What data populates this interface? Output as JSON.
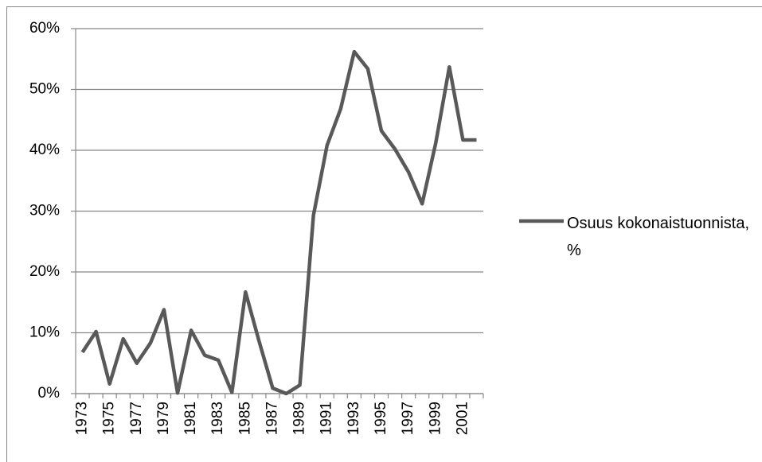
{
  "chart_data": {
    "type": "line",
    "categories": [
      "1973",
      null,
      "1975",
      null,
      "1977",
      null,
      "1979",
      null,
      "1981",
      null,
      "1983",
      null,
      "1985",
      null,
      "1987",
      null,
      "1989",
      null,
      "1991",
      null,
      "1993",
      null,
      "1995",
      null,
      "1997",
      null,
      "1999",
      null,
      "2001",
      null
    ],
    "series": [
      {
        "name": "Osuus kokonaistuonnista, %",
        "color": "#595959",
        "values": [
          6.8,
          10.2,
          1.6,
          9.0,
          5.0,
          8.3,
          13.8,
          0.1,
          10.4,
          6.3,
          5.5,
          0.2,
          16.7,
          8.6,
          0.9,
          0.0,
          1.4,
          29.3,
          40.8,
          46.8,
          56.2,
          53.4,
          43.2,
          40.2,
          36.4,
          31.2,
          41.2,
          53.7,
          41.7,
          41.7
        ]
      }
    ],
    "ylim": [
      0,
      60
    ],
    "yticks": [
      {
        "value": 0,
        "label": "0%"
      },
      {
        "value": 10,
        "label": "10%"
      },
      {
        "value": 20,
        "label": "20%"
      },
      {
        "value": 30,
        "label": "30%"
      },
      {
        "value": 40,
        "label": "40%"
      },
      {
        "value": 50,
        "label": "50%"
      },
      {
        "value": 60,
        "label": "60%"
      }
    ],
    "grid": true,
    "legend": "right"
  }
}
